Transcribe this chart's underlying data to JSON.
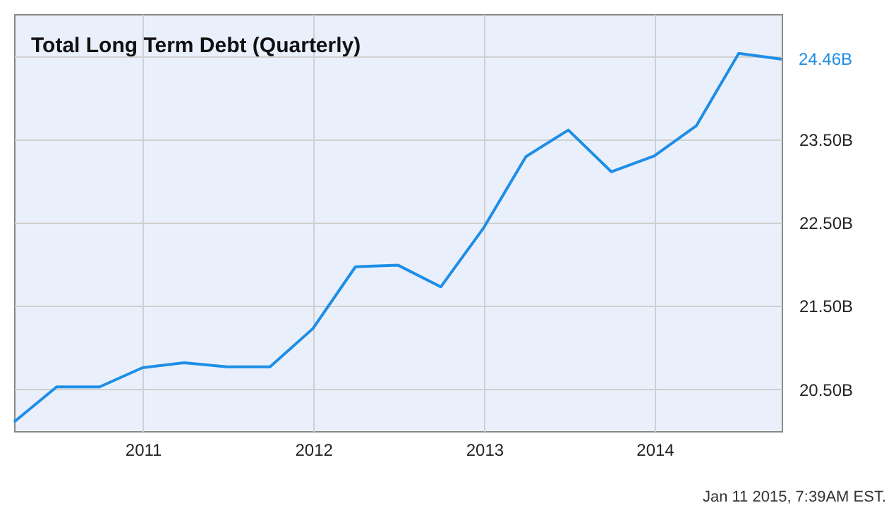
{
  "chart_data": {
    "type": "line",
    "title": "Total Long Term Debt (Quarterly)",
    "x": [
      "2010-03-31",
      "2010-06-30",
      "2010-09-30",
      "2010-12-31",
      "2011-03-31",
      "2011-06-30",
      "2011-09-30",
      "2011-12-31",
      "2012-03-31",
      "2012-06-30",
      "2012-09-30",
      "2012-12-31",
      "2013-03-31",
      "2013-06-30",
      "2013-09-30",
      "2013-12-31",
      "2014-03-31",
      "2014-06-30",
      "2014-09-30"
    ],
    "values": [
      20.11,
      20.53,
      20.53,
      20.76,
      20.82,
      20.77,
      20.77,
      21.23,
      21.97,
      21.99,
      21.73,
      22.44,
      23.29,
      23.61,
      23.11,
      23.3,
      23.66,
      24.53,
      24.46
    ],
    "value_labels": [
      null,
      null,
      null,
      null,
      null,
      null,
      null,
      null,
      null,
      null,
      null,
      null,
      null,
      null,
      null,
      null,
      null,
      null,
      "24.46B"
    ],
    "color": "#1e8ee6",
    "xlim": [
      "2010-03-31",
      "2014-09-30"
    ],
    "xticks": [
      "2011",
      "2012",
      "2013",
      "2014"
    ],
    "ylim": [
      20,
      25
    ],
    "yticks": [
      {
        "value": 20.5,
        "label": "20.50B"
      },
      {
        "value": 21.5,
        "label": "21.50B"
      },
      {
        "value": 22.5,
        "label": "22.50B"
      },
      {
        "value": 23.5,
        "label": "23.50B"
      },
      {
        "value": 24.5,
        "label": null
      }
    ],
    "grid": true,
    "annotations": [
      "Jan 11 2015, 7:39AM EST."
    ]
  }
}
